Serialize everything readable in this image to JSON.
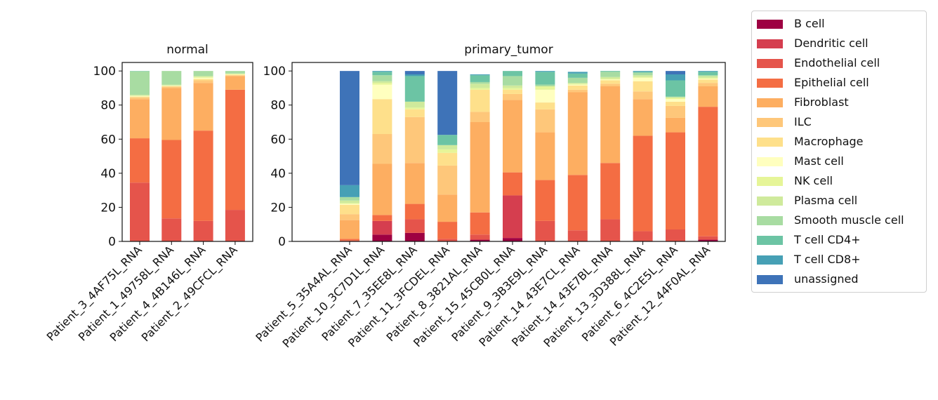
{
  "chart_data": {
    "type": "bar",
    "stacked": true,
    "ylim": [
      0,
      105
    ],
    "yticks": [
      0,
      20,
      40,
      60,
      80,
      100
    ],
    "cell_types": [
      "B cell",
      "Dendritic cell",
      "Endothelial cell",
      "Epithelial cell",
      "Fibroblast",
      "ILC",
      "Macrophage",
      "Mast cell",
      "NK cell",
      "Plasma cell",
      "Smooth muscle cell",
      "T cell CD4+",
      "T cell CD8+",
      "unassigned"
    ],
    "colors": [
      "#9e0142",
      "#d53e4f",
      "#e5544b",
      "#f46d43",
      "#fdae61",
      "#fec77a",
      "#fee08b",
      "#ffffbf",
      "#e6f598",
      "#cfea9c",
      "#a8dca2",
      "#6cc4a4",
      "#46a0b5",
      "#3e73b8"
    ],
    "panels": [
      {
        "title": "normal",
        "categories": [
          "Patient_3_4AF75L_RNA",
          "Patient_1_49758L_RNA",
          "Patient_4_4B146L_RNA",
          "Patient_2_49CFCL_RNA"
        ],
        "values": [
          [
            0,
            0,
            34.5,
            26.0,
            23.0,
            1.0,
            0.5,
            0.3,
            0.2,
            0.5,
            13.8,
            0.2,
            0,
            0
          ],
          [
            0,
            0,
            13.5,
            46.0,
            30.5,
            0.8,
            0.3,
            0.2,
            0.2,
            0.5,
            8.0,
            0,
            0,
            0
          ],
          [
            0,
            0,
            12.0,
            53.0,
            28.0,
            1.5,
            0.8,
            0.7,
            0.5,
            0.5,
            3.0,
            0,
            0,
            0
          ],
          [
            0,
            0,
            18.5,
            70.5,
            8.0,
            0.5,
            0.3,
            0.2,
            0.3,
            0.2,
            1.5,
            0,
            0,
            0
          ]
        ]
      },
      {
        "title": "primary_tumor",
        "categories": [
          "Patient_5_35A4AL_RNA",
          "Patient_10_3C7D1L_RNA",
          "Patient_7_35EE8L_RNA",
          "Patient_11_3FCDEL_RNA",
          "Patient_8_3821AL_RNA",
          "Patient_15_45CB0L_RNA",
          "Patient_9_3B3E9L_RNA",
          "Patient_14_43E7CL_RNA",
          "Patient_14_43E7BL_RNA",
          "Patient_13_3D388L_RNA",
          "Patient_6_4C2E5L_RNA",
          "Patient_12_44F0AL_RNA"
        ],
        "values": [
          [
            0,
            0,
            0.5,
            1.0,
            11.0,
            3.5,
            5.5,
            0.5,
            0.5,
            1.5,
            2.0,
            0,
            7.0,
            67.0
          ],
          [
            4.0,
            8.0,
            0,
            3.5,
            30.0,
            17.5,
            20.5,
            8.5,
            1.0,
            1.0,
            3.5,
            2.0,
            0.5,
            0
          ],
          [
            5.0,
            0,
            8.0,
            9.0,
            24.0,
            27.0,
            4.5,
            0,
            1.0,
            3.5,
            0,
            15.0,
            1.0,
            2.0
          ],
          [
            0,
            0,
            1.5,
            10.0,
            16.0,
            17.0,
            7.5,
            0,
            2.0,
            2.5,
            0,
            6.0,
            0,
            37.5
          ],
          [
            1.0,
            0,
            3.0,
            13.0,
            53.0,
            6.0,
            13.0,
            0,
            1.0,
            2.5,
            1.0,
            4.0,
            0.5,
            0
          ],
          [
            2.0,
            25.0,
            0,
            13.5,
            42.5,
            3.5,
            2.5,
            0,
            1.0,
            1.5,
            5.5,
            3.0,
            0,
            0
          ],
          [
            0,
            0,
            12.0,
            24.0,
            28.0,
            13.5,
            4.0,
            7.5,
            2.0,
            0,
            1.0,
            7.5,
            0.5,
            0
          ],
          [
            0,
            0,
            6.5,
            32.5,
            48.5,
            1.5,
            2.5,
            0.5,
            0.5,
            0.5,
            3.0,
            2.5,
            1.0,
            0
          ],
          [
            0,
            0,
            13.0,
            33.0,
            45.0,
            1.5,
            2.0,
            0.5,
            0.5,
            1.0,
            3.0,
            0.5,
            0,
            0
          ],
          [
            0,
            0,
            6.0,
            56.0,
            21.5,
            4.5,
            6.0,
            2.0,
            0.5,
            1.0,
            1.5,
            0.5,
            0.5,
            0
          ],
          [
            0,
            0,
            7.0,
            57.0,
            8.5,
            7.0,
            2.5,
            1.5,
            1.0,
            0,
            0.5,
            9.5,
            3.5,
            2.0
          ],
          [
            1.0,
            0,
            2.0,
            76.0,
            12.0,
            2.0,
            2.0,
            0.5,
            0.5,
            1.0,
            0.5,
            2.0,
            0.5,
            0
          ]
        ]
      }
    ]
  }
}
